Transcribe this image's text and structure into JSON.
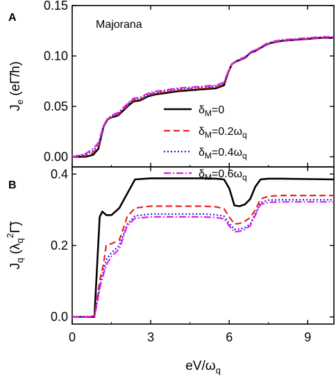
{
  "colors": {
    "axis": "#000000",
    "series": [
      "#000000",
      "#e8231c",
      "#1c1ce8",
      "#e01ee0"
    ]
  },
  "chart_data": [
    {
      "panel": "A",
      "type": "line",
      "annotation": "Majorana",
      "xlabel": "",
      "ylabel": {
        "base": "J",
        "sub": "e",
        "unit": "(eΓ̃/h)"
      },
      "xlim": [
        0,
        10
      ],
      "ylim": [
        -0.01,
        0.15
      ],
      "xticks": [
        0,
        3,
        6,
        9
      ],
      "yticks": [
        {
          "v": 0.0,
          "label": "0.00"
        },
        {
          "v": 0.05,
          "label": "0.05"
        },
        {
          "v": 0.1,
          "label": "0.10"
        },
        {
          "v": 0.15,
          "label": "0.15"
        }
      ],
      "legend": {
        "placement": "center-right",
        "entries": [
          {
            "prefix": "δ",
            "sub": "M",
            "value": "=0"
          },
          {
            "prefix": "δ",
            "sub": "M",
            "value": "=0.2ω",
            "value_sub": "q"
          },
          {
            "prefix": "δ",
            "sub": "M",
            "value": "=0.4ω",
            "value_sub": "q"
          },
          {
            "prefix": "δ",
            "sub": "M",
            "value": "=0.6ω",
            "value_sub": "q"
          }
        ]
      },
      "series": [
        {
          "x": [
            0,
            0.5,
            0.8,
            1.0,
            1.2,
            1.35,
            1.5,
            1.75,
            2.0,
            2.2,
            2.35,
            2.6,
            2.9,
            3.2,
            3.5,
            4.0,
            4.5,
            5.0,
            5.5,
            5.8,
            5.95,
            6.1,
            6.3,
            6.6,
            6.8,
            7.0,
            7.2,
            7.4,
            7.6,
            8.0,
            8.5,
            9.0,
            9.5,
            10
          ],
          "y": [
            0.0,
            0.0,
            0.002,
            0.008,
            0.03,
            0.037,
            0.039,
            0.041,
            0.047,
            0.052,
            0.055,
            0.056,
            0.06,
            0.062,
            0.063,
            0.065,
            0.066,
            0.067,
            0.068,
            0.071,
            0.083,
            0.092,
            0.095,
            0.098,
            0.103,
            0.105,
            0.108,
            0.111,
            0.113,
            0.115,
            0.116,
            0.117,
            0.118,
            0.118
          ]
        },
        {
          "x": [
            0,
            0.5,
            0.8,
            1.0,
            1.2,
            1.35,
            1.5,
            1.75,
            2.0,
            2.2,
            2.35,
            2.6,
            2.9,
            3.2,
            3.5,
            4.0,
            4.5,
            5.0,
            5.5,
            5.8,
            5.95,
            6.1,
            6.3,
            6.6,
            6.8,
            7.0,
            7.2,
            7.4,
            7.6,
            8.0,
            8.5,
            9.0,
            9.5,
            10
          ],
          "y": [
            0.0,
            0.001,
            0.004,
            0.01,
            0.03,
            0.037,
            0.039,
            0.042,
            0.048,
            0.053,
            0.056,
            0.057,
            0.061,
            0.063,
            0.064,
            0.066,
            0.067,
            0.068,
            0.069,
            0.072,
            0.083,
            0.092,
            0.095,
            0.098,
            0.103,
            0.105,
            0.108,
            0.111,
            0.113,
            0.115,
            0.116,
            0.117,
            0.118,
            0.118
          ]
        },
        {
          "x": [
            0,
            0.5,
            0.8,
            1.0,
            1.2,
            1.35,
            1.5,
            1.75,
            2.0,
            2.2,
            2.35,
            2.6,
            2.9,
            3.2,
            3.5,
            4.0,
            4.5,
            5.0,
            5.5,
            5.8,
            5.95,
            6.1,
            6.3,
            6.6,
            6.8,
            7.0,
            7.2,
            7.4,
            7.6,
            8.0,
            8.5,
            9.0,
            9.5,
            10
          ],
          "y": [
            0.0,
            0.002,
            0.006,
            0.012,
            0.03,
            0.037,
            0.04,
            0.043,
            0.049,
            0.054,
            0.057,
            0.058,
            0.062,
            0.064,
            0.065,
            0.067,
            0.068,
            0.069,
            0.07,
            0.073,
            0.084,
            0.092,
            0.095,
            0.098,
            0.103,
            0.105,
            0.108,
            0.111,
            0.113,
            0.115,
            0.116,
            0.117,
            0.118,
            0.118
          ]
        },
        {
          "x": [
            0,
            0.5,
            0.8,
            1.0,
            1.2,
            1.35,
            1.5,
            1.75,
            2.0,
            2.2,
            2.35,
            2.6,
            2.9,
            3.2,
            3.5,
            4.0,
            4.5,
            5.0,
            5.5,
            5.8,
            5.95,
            6.1,
            6.3,
            6.6,
            6.8,
            7.0,
            7.2,
            7.4,
            7.6,
            8.0,
            8.5,
            9.0,
            9.5,
            10
          ],
          "y": [
            0.0,
            0.003,
            0.008,
            0.014,
            0.031,
            0.038,
            0.041,
            0.044,
            0.05,
            0.055,
            0.058,
            0.059,
            0.063,
            0.065,
            0.066,
            0.068,
            0.069,
            0.07,
            0.071,
            0.074,
            0.084,
            0.092,
            0.096,
            0.099,
            0.104,
            0.106,
            0.109,
            0.112,
            0.114,
            0.116,
            0.117,
            0.118,
            0.119,
            0.119
          ]
        }
      ]
    },
    {
      "panel": "B",
      "type": "line",
      "xlabel": {
        "base": "eV/ω",
        "sub": "q"
      },
      "ylabel": {
        "base": "J",
        "sub": "q",
        "unit": "(λ",
        "unit_sub": "q",
        "unit_sup": "2",
        "unit_tail": "Γ̃)"
      },
      "xlim": [
        0,
        10
      ],
      "ylim": [
        -0.02,
        0.42
      ],
      "xticks": [
        0,
        3,
        6,
        9
      ],
      "yticks": [
        {
          "v": 0.0,
          "label": "0.0"
        },
        {
          "v": 0.2,
          "label": "0.2"
        },
        {
          "v": 0.4,
          "label": "0.4"
        }
      ],
      "series": [
        {
          "x": [
            0,
            0.5,
            0.85,
            0.95,
            1.05,
            1.15,
            1.3,
            1.5,
            1.8,
            2.1,
            2.4,
            3.0,
            4.0,
            5.0,
            5.5,
            5.8,
            6.0,
            6.2,
            6.4,
            6.6,
            6.8,
            7.0,
            7.2,
            7.5,
            8.0,
            9.0,
            10
          ],
          "y": [
            0.0,
            0.0,
            0.0,
            0.14,
            0.28,
            0.295,
            0.285,
            0.285,
            0.305,
            0.345,
            0.385,
            0.388,
            0.388,
            0.388,
            0.387,
            0.385,
            0.36,
            0.312,
            0.31,
            0.315,
            0.33,
            0.365,
            0.385,
            0.387,
            0.387,
            0.386,
            0.385
          ]
        },
        {
          "x": [
            0,
            0.5,
            0.85,
            0.95,
            1.05,
            1.2,
            1.3,
            1.5,
            1.8,
            2.1,
            2.4,
            3.0,
            4.0,
            5.0,
            5.5,
            5.8,
            6.0,
            6.2,
            6.4,
            6.6,
            6.8,
            7.0,
            7.2,
            7.5,
            8.0,
            9.0,
            10
          ],
          "y": [
            0.0,
            0.0,
            0.003,
            0.05,
            0.1,
            0.15,
            0.2,
            0.205,
            0.215,
            0.28,
            0.305,
            0.31,
            0.31,
            0.31,
            0.308,
            0.303,
            0.28,
            0.26,
            0.262,
            0.268,
            0.278,
            0.3,
            0.33,
            0.338,
            0.34,
            0.34,
            0.34
          ]
        },
        {
          "x": [
            0,
            0.5,
            0.85,
            0.95,
            1.05,
            1.2,
            1.3,
            1.5,
            1.8,
            2.1,
            2.4,
            3.0,
            4.0,
            5.0,
            5.5,
            5.8,
            6.0,
            6.2,
            6.4,
            6.6,
            6.8,
            7.0,
            7.2,
            7.5,
            8.0,
            9.0,
            10
          ],
          "y": [
            0.0,
            0.0,
            0.002,
            0.04,
            0.085,
            0.13,
            0.16,
            0.18,
            0.2,
            0.26,
            0.283,
            0.288,
            0.288,
            0.288,
            0.286,
            0.282,
            0.262,
            0.245,
            0.246,
            0.25,
            0.26,
            0.29,
            0.32,
            0.327,
            0.328,
            0.328,
            0.328
          ]
        },
        {
          "x": [
            0,
            0.5,
            0.85,
            0.95,
            1.05,
            1.2,
            1.3,
            1.5,
            1.8,
            2.1,
            2.4,
            3.0,
            4.0,
            5.0,
            5.5,
            5.8,
            6.0,
            6.2,
            6.4,
            6.6,
            6.8,
            7.0,
            7.2,
            7.5,
            8.0,
            9.0,
            10
          ],
          "y": [
            0.0,
            0.0,
            0.002,
            0.035,
            0.08,
            0.12,
            0.145,
            0.17,
            0.19,
            0.255,
            0.276,
            0.28,
            0.28,
            0.28,
            0.278,
            0.275,
            0.255,
            0.238,
            0.24,
            0.245,
            0.255,
            0.285,
            0.315,
            0.321,
            0.322,
            0.322,
            0.322
          ]
        }
      ]
    }
  ]
}
